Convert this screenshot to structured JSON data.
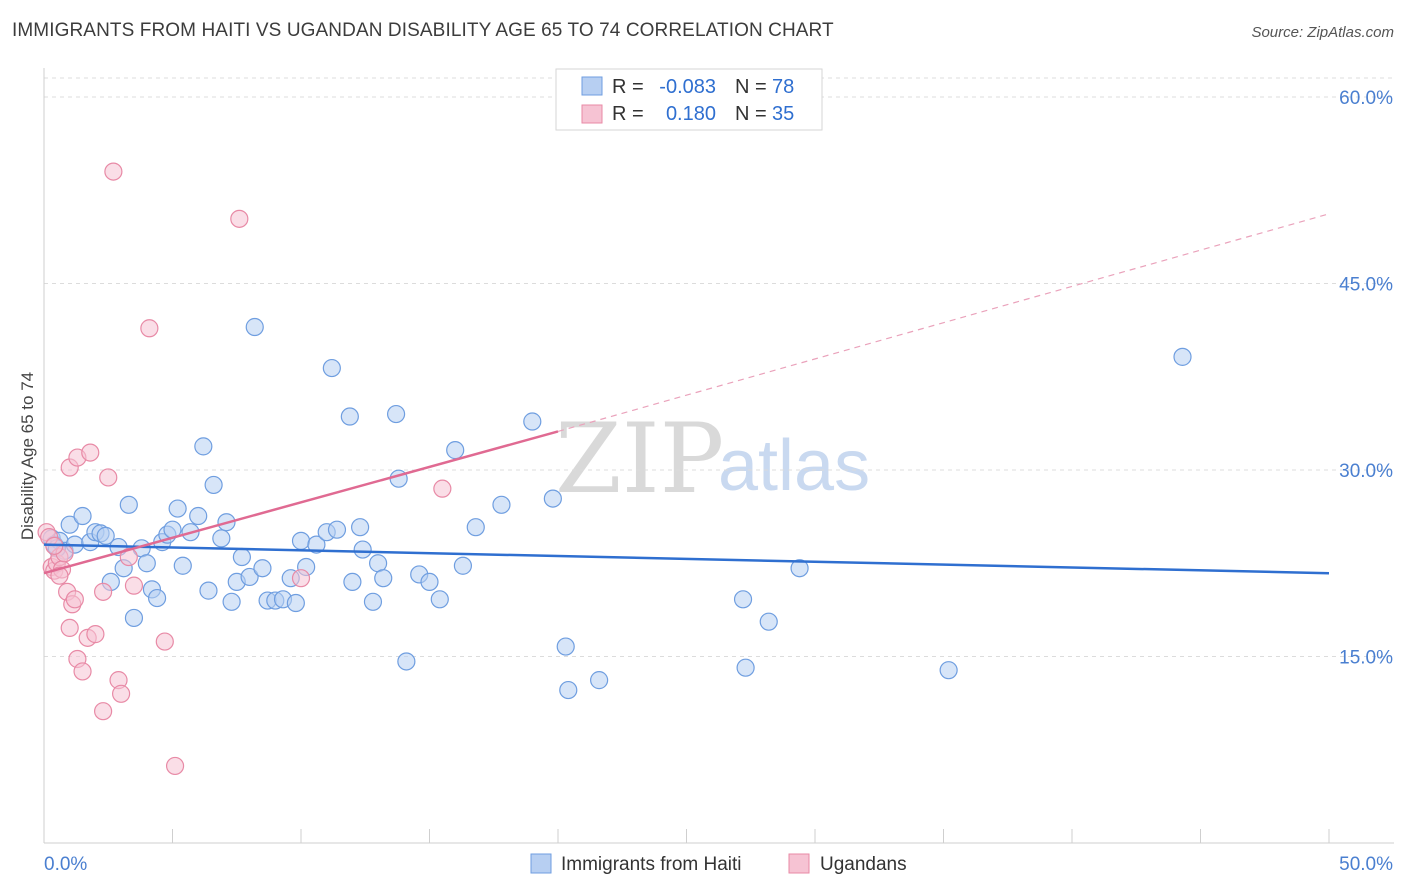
{
  "title": "IMMIGRANTS FROM HAITI VS UGANDAN DISABILITY AGE 65 TO 74 CORRELATION CHART",
  "source": "Source: ZipAtlas.com",
  "watermark": {
    "zip": "ZIP",
    "atlas": "atlas"
  },
  "chart_data": {
    "type": "scatter",
    "xlabel": "",
    "ylabel": "Disability Age 65 to 74",
    "xlim": [
      0,
      50
    ],
    "ylim": [
      0,
      60
    ],
    "x_tick_labels": [
      "0.0%",
      "50.0%"
    ],
    "y_ticks": [
      {
        "value": 15,
        "label": "15.0%"
      },
      {
        "value": 30,
        "label": "30.0%"
      },
      {
        "value": 45,
        "label": "45.0%"
      },
      {
        "value": 60,
        "label": "60.0%"
      }
    ],
    "legend": [
      {
        "r_label": "R =",
        "r_value": "-0.083",
        "n_label": "N =",
        "n_value": "78"
      },
      {
        "r_label": "R =",
        "r_value": "0.180",
        "n_label": "N =",
        "n_value": "35"
      }
    ],
    "series": [
      {
        "name": "Immigrants from Haiti",
        "color": "#6f9ee0",
        "fill": "#b7cff2",
        "trend": {
          "x0": 0,
          "y0": 24.0,
          "x1": 50,
          "y1": 21.7
        },
        "points": [
          [
            0.3,
            24.5
          ],
          [
            0.4,
            24.0
          ],
          [
            0.6,
            24.3
          ],
          [
            0.8,
            23.5
          ],
          [
            1.0,
            25.6
          ],
          [
            1.2,
            24.0
          ],
          [
            1.5,
            26.3
          ],
          [
            1.8,
            24.2
          ],
          [
            2.0,
            25.0
          ],
          [
            2.2,
            24.9
          ],
          [
            2.4,
            24.7
          ],
          [
            2.6,
            21.0
          ],
          [
            2.9,
            23.8
          ],
          [
            3.1,
            22.1
          ],
          [
            3.3,
            27.2
          ],
          [
            3.5,
            18.1
          ],
          [
            3.8,
            23.7
          ],
          [
            4.0,
            22.5
          ],
          [
            4.2,
            20.4
          ],
          [
            4.4,
            19.7
          ],
          [
            4.6,
            24.2
          ],
          [
            4.8,
            24.8
          ],
          [
            5.0,
            25.2
          ],
          [
            5.2,
            26.9
          ],
          [
            5.4,
            22.3
          ],
          [
            5.7,
            25.0
          ],
          [
            6.0,
            26.3
          ],
          [
            6.2,
            31.9
          ],
          [
            6.4,
            20.3
          ],
          [
            6.6,
            28.8
          ],
          [
            6.9,
            24.5
          ],
          [
            7.1,
            25.8
          ],
          [
            7.3,
            19.4
          ],
          [
            7.5,
            21.0
          ],
          [
            7.7,
            23.0
          ],
          [
            8.0,
            21.4
          ],
          [
            8.2,
            41.5
          ],
          [
            8.5,
            22.1
          ],
          [
            8.7,
            19.5
          ],
          [
            9.0,
            19.5
          ],
          [
            9.3,
            19.6
          ],
          [
            9.6,
            21.3
          ],
          [
            9.8,
            19.3
          ],
          [
            10.0,
            24.3
          ],
          [
            10.2,
            22.2
          ],
          [
            10.6,
            24.0
          ],
          [
            11.0,
            25.0
          ],
          [
            11.2,
            38.2
          ],
          [
            11.4,
            25.2
          ],
          [
            11.9,
            34.3
          ],
          [
            12.0,
            21.0
          ],
          [
            12.3,
            25.4
          ],
          [
            12.4,
            23.6
          ],
          [
            12.8,
            19.4
          ],
          [
            13.0,
            22.5
          ],
          [
            13.2,
            21.3
          ],
          [
            13.7,
            34.5
          ],
          [
            13.8,
            29.3
          ],
          [
            14.1,
            14.6
          ],
          [
            14.6,
            21.6
          ],
          [
            15.0,
            21.0
          ],
          [
            15.4,
            19.6
          ],
          [
            16.0,
            31.6
          ],
          [
            16.3,
            22.3
          ],
          [
            16.8,
            25.4
          ],
          [
            17.8,
            27.2
          ],
          [
            19.0,
            33.9
          ],
          [
            19.8,
            27.7
          ],
          [
            20.3,
            15.8
          ],
          [
            20.4,
            12.3
          ],
          [
            21.6,
            13.1
          ],
          [
            27.2,
            19.6
          ],
          [
            27.3,
            14.1
          ],
          [
            28.2,
            17.8
          ],
          [
            29.4,
            22.1
          ],
          [
            35.2,
            13.9
          ],
          [
            44.3,
            39.1
          ],
          [
            0.5,
            23.7
          ]
        ]
      },
      {
        "name": "Ugandans",
        "color": "#e88aa6",
        "fill": "#f6c3d3",
        "trend": {
          "x0": 0,
          "y0": 21.7,
          "x1": 20,
          "y1": 33.1
        },
        "trend_dashed": {
          "x0": 20,
          "y0": 33.1,
          "x1": 50,
          "y1": 50.6
        },
        "points": [
          [
            0.1,
            25.0
          ],
          [
            0.2,
            24.6
          ],
          [
            0.3,
            22.2
          ],
          [
            0.4,
            21.9
          ],
          [
            0.5,
            22.5
          ],
          [
            0.6,
            23.0
          ],
          [
            0.7,
            22.0
          ],
          [
            0.8,
            23.3
          ],
          [
            0.9,
            20.2
          ],
          [
            1.0,
            30.2
          ],
          [
            1.0,
            17.3
          ],
          [
            1.1,
            19.2
          ],
          [
            1.2,
            19.6
          ],
          [
            1.3,
            31.0
          ],
          [
            1.3,
            14.8
          ],
          [
            1.5,
            13.8
          ],
          [
            1.7,
            16.5
          ],
          [
            1.8,
            31.4
          ],
          [
            2.0,
            16.8
          ],
          [
            2.3,
            20.2
          ],
          [
            2.3,
            10.6
          ],
          [
            2.5,
            29.4
          ],
          [
            2.7,
            54.0
          ],
          [
            2.9,
            13.1
          ],
          [
            3.0,
            12.0
          ],
          [
            3.3,
            23.0
          ],
          [
            3.5,
            20.7
          ],
          [
            4.1,
            41.4
          ],
          [
            4.7,
            16.2
          ],
          [
            5.1,
            6.2
          ],
          [
            7.6,
            50.2
          ],
          [
            10.0,
            21.3
          ],
          [
            15.5,
            28.5
          ],
          [
            0.4,
            23.9
          ],
          [
            0.6,
            21.5
          ]
        ]
      }
    ]
  }
}
